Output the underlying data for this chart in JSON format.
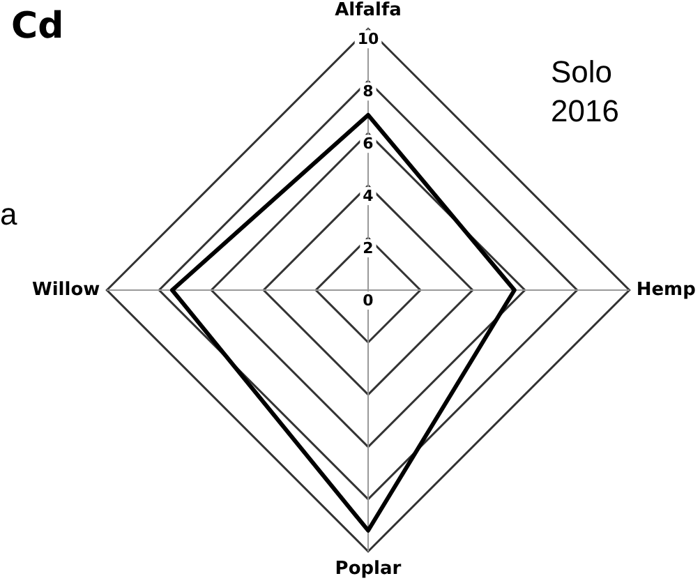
{
  "chart_data": {
    "type": "radar",
    "title": "Cd",
    "annotations": [
      "Solo 2016",
      "a"
    ],
    "categories": [
      "Alfalfa",
      "Hemp",
      "Poplar",
      "Willow"
    ],
    "series": [
      {
        "color": "#000000",
        "values": [
          6.7,
          5.6,
          9.2,
          7.5
        ]
      }
    ],
    "ylim": [
      0,
      10
    ],
    "yticks": [
      0,
      2,
      4,
      6,
      8,
      10
    ],
    "grid": true,
    "legend": false,
    "marker": "none",
    "line_style": "solid"
  }
}
